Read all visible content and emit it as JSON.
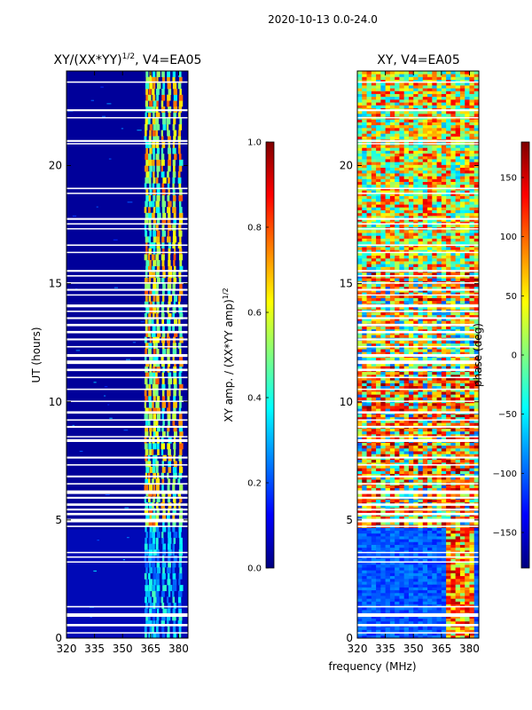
{
  "figure_title": "2020-10-13 0.0-24.0",
  "xlabel_shared": "frequency (MHz)",
  "chart_data": [
    {
      "type": "heatmap",
      "title": "XY/(XX*YY)^{1/2}, V4=EA05",
      "title_main": "XY/(XX*YY)",
      "title_sup": "1/2",
      "title_suffix": ", V4=EA05",
      "xlabel": "frequency (MHz)",
      "ylabel": "UT (hours)",
      "xlim": [
        320,
        385
      ],
      "ylim": [
        0,
        24
      ],
      "xticks": [
        320,
        335,
        350,
        365,
        380
      ],
      "yticks": [
        0,
        5,
        10,
        15,
        20
      ],
      "colormap": "jet",
      "colorbar": {
        "label": "XY amp. / (XX*YY amp)^{1/2}",
        "label_main": "XY amp. / (XX*YY amp)",
        "label_sup": "1/2",
        "range": [
          0.0,
          1.0
        ],
        "ticks": [
          "0.0",
          "0.2",
          "0.4",
          "0.6",
          "0.8",
          "1.0"
        ]
      }
    },
    {
      "type": "heatmap",
      "title": "XY, V4=EA05",
      "xlabel": "frequency (MHz)",
      "ylabel": "",
      "xlim": [
        320,
        385
      ],
      "ylim": [
        0,
        24
      ],
      "xticks": [
        320,
        335,
        350,
        365,
        380
      ],
      "yticks": [
        0,
        5,
        10,
        15,
        20
      ],
      "colormap": "jet",
      "colorbar": {
        "label": "phase (deg)",
        "range": [
          -180,
          180
        ],
        "ticks": [
          "-150",
          "-100",
          "-50",
          "0",
          "50",
          "100",
          "150"
        ]
      }
    }
  ],
  "colors": {
    "jet_dark_blue": "#00007f",
    "jet_blue": "#0000ff",
    "jet_cyan": "#00ffff",
    "jet_yellow": "#ffff00",
    "jet_red": "#ff0000",
    "jet_dark_red": "#7f0000"
  }
}
